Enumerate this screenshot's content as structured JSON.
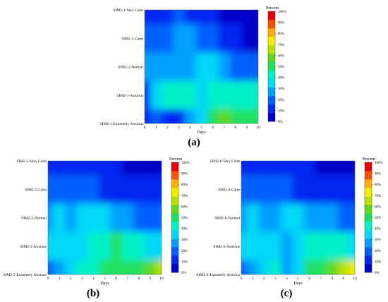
{
  "captions": [
    "(a)",
    "(b)",
    "(c)"
  ],
  "scale": {
    "colors": [
      "#0000c8",
      "#0028f0",
      "#0060ff",
      "#00a0ff",
      "#00d8f8",
      "#00f0c8",
      "#20e060",
      "#60d820",
      "#b8e000",
      "#f0f000",
      "#ffb000",
      "#ff5000",
      "#e80000"
    ]
  },
  "chart_data": [
    {
      "type": "heatmap",
      "panel": "a",
      "y_categories": [
        "SIM2-1-Very Calm",
        "SIM2-1-Calm",
        "SIM2-1-Normal",
        "SIM2-1-Anxious",
        "SIM2-1-Extremely Anxious"
      ],
      "x": [
        0,
        1,
        2,
        3,
        4,
        5,
        6,
        7,
        8,
        9,
        10
      ],
      "xlabel": "Days",
      "colorbar_label": "Percent",
      "colorbar_ticks": [
        "100%",
        "90%",
        "80%",
        "70%",
        "60%",
        "50%",
        "40%",
        "30%",
        "20%",
        "10%",
        "0%"
      ],
      "zlim": [
        0,
        100
      ],
      "values": [
        [
          12,
          8,
          10,
          14,
          10,
          8,
          6,
          4,
          3,
          2,
          2
        ],
        [
          18,
          16,
          18,
          22,
          24,
          14,
          16,
          8,
          6,
          4,
          4
        ],
        [
          25,
          27,
          28,
          26,
          28,
          30,
          30,
          24,
          20,
          18,
          16
        ],
        [
          10,
          34,
          40,
          45,
          38,
          30,
          40,
          42,
          40,
          38,
          38
        ],
        [
          5,
          15,
          12,
          10,
          24,
          30,
          50,
          55,
          54,
          54,
          52
        ]
      ]
    },
    {
      "type": "heatmap",
      "panel": "b",
      "y_categories": [
        "SIM2-5-Very Calm",
        "SIM2-5-Calm",
        "SIM2-5-Normal",
        "SIM2-5-Anxious",
        "SIM2-5-Extremely Anxious"
      ],
      "x": [
        0,
        1,
        2,
        3,
        4,
        5,
        6,
        7,
        8,
        9,
        10
      ],
      "xlabel": "Days",
      "colorbar_label": "Percent",
      "colorbar_ticks": [
        "100%",
        "90%",
        "80%",
        "70%",
        "60%",
        "50%",
        "40%",
        "30%",
        "20%",
        "10%",
        "0%"
      ],
      "zlim": [
        0,
        100
      ],
      "values": [
        [
          12,
          10,
          8,
          6,
          6,
          6,
          5,
          4,
          4,
          3,
          3
        ],
        [
          18,
          20,
          18,
          16,
          14,
          12,
          10,
          8,
          8,
          6,
          6
        ],
        [
          26,
          30,
          28,
          30,
          32,
          30,
          28,
          24,
          20,
          18,
          16
        ],
        [
          30,
          32,
          34,
          36,
          40,
          44,
          46,
          42,
          38,
          36,
          32
        ],
        [
          20,
          24,
          34,
          40,
          44,
          46,
          46,
          46,
          50,
          60,
          70
        ]
      ]
    },
    {
      "type": "heatmap",
      "panel": "c",
      "y_categories": [
        "SIM2-6-Very Calm",
        "SIM2-6-Calm",
        "SIM2-6-Normal",
        "SIM2-6-Anxious",
        "SIM2-6-Extremely Anxious"
      ],
      "x": [
        0,
        1,
        2,
        3,
        4,
        5,
        6,
        7,
        8,
        9,
        10
      ],
      "xlabel": "Days",
      "colorbar_label": "Percent",
      "colorbar_ticks": [
        "100%",
        "90%",
        "80%",
        "70%",
        "60%",
        "50%",
        "40%",
        "30%",
        "20%",
        "10%",
        "0%"
      ],
      "zlim": [
        0,
        100
      ],
      "values": [
        [
          12,
          10,
          8,
          6,
          6,
          6,
          5,
          4,
          4,
          3,
          3
        ],
        [
          18,
          20,
          18,
          16,
          14,
          12,
          10,
          8,
          8,
          6,
          6
        ],
        [
          28,
          30,
          26,
          28,
          30,
          30,
          26,
          24,
          22,
          18,
          16
        ],
        [
          30,
          30,
          36,
          30,
          24,
          34,
          44,
          44,
          42,
          38,
          36
        ],
        [
          20,
          26,
          36,
          40,
          28,
          36,
          46,
          50,
          55,
          68,
          74
        ]
      ]
    }
  ]
}
